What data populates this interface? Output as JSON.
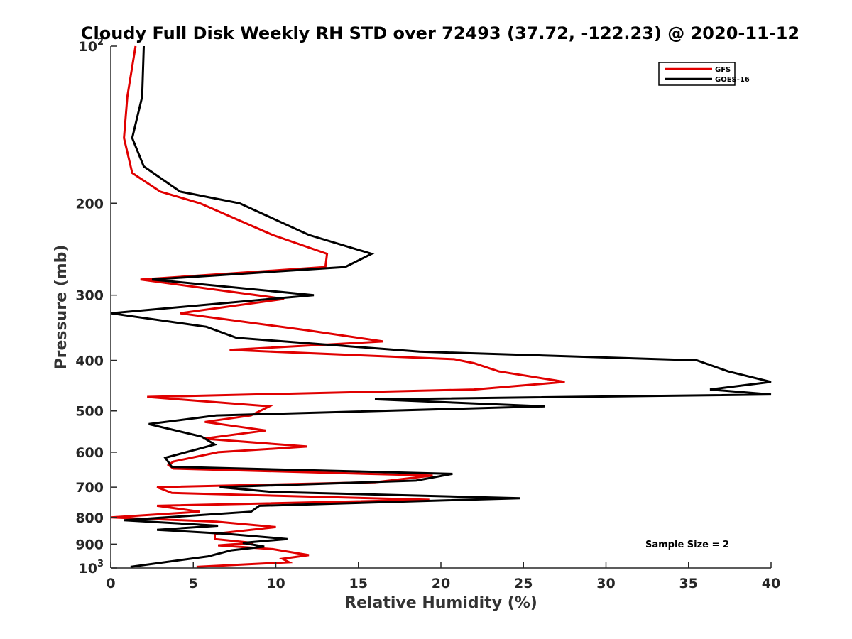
{
  "chart_data": {
    "type": "line",
    "title": "Cloudy Full Disk Weekly RH STD over 72493 (37.72, -122.23) @ 2020-11-12",
    "xlabel": "Relative Humidity (%)",
    "ylabel": "Pressure (mb)",
    "xlim": [
      0,
      40
    ],
    "ylim": [
      100,
      1000
    ],
    "yscale": "log",
    "y_reversed": true,
    "grid": false,
    "legend_position": "top-right",
    "x_ticks": [
      "0",
      "5",
      "10",
      "15",
      "20",
      "25",
      "30",
      "35",
      "40"
    ],
    "y_ticks": [
      {
        "value": 100,
        "base": "10",
        "exp": "2"
      },
      {
        "value": 200,
        "label": "200"
      },
      {
        "value": 300,
        "label": "300"
      },
      {
        "value": 400,
        "label": "400"
      },
      {
        "value": 500,
        "label": "500"
      },
      {
        "value": 600,
        "label": "600"
      },
      {
        "value": 700,
        "label": "700"
      },
      {
        "value": 800,
        "label": "800"
      },
      {
        "value": 900,
        "label": "900"
      },
      {
        "value": 1000,
        "base": "10",
        "exp": "3"
      }
    ],
    "series": [
      {
        "name": "GFS",
        "color": "#e00000",
        "points": [
          [
            1.5,
            100
          ],
          [
            1.0,
            125
          ],
          [
            0.8,
            150
          ],
          [
            1.3,
            175
          ],
          [
            3.0,
            190
          ],
          [
            5.4,
            200
          ],
          [
            9.8,
            230
          ],
          [
            13.1,
            250
          ],
          [
            13.0,
            265
          ],
          [
            1.8,
            280
          ],
          [
            10.5,
            305
          ],
          [
            4.2,
            325
          ],
          [
            11.8,
            350
          ],
          [
            16.5,
            368
          ],
          [
            7.2,
            382
          ],
          [
            20.8,
            398
          ],
          [
            22.0,
            405
          ],
          [
            23.5,
            420
          ],
          [
            27.5,
            440
          ],
          [
            22.0,
            455
          ],
          [
            2.2,
            470
          ],
          [
            9.6,
            490
          ],
          [
            8.5,
            510
          ],
          [
            5.7,
            525
          ],
          [
            9.4,
            545
          ],
          [
            5.6,
            565
          ],
          [
            11.9,
            585
          ],
          [
            6.5,
            600
          ],
          [
            3.8,
            625
          ],
          [
            3.5,
            635
          ],
          [
            3.8,
            645
          ],
          [
            19.5,
            665
          ],
          [
            16.0,
            685
          ],
          [
            2.8,
            700
          ],
          [
            3.7,
            718
          ],
          [
            19.3,
            740
          ],
          [
            2.8,
            760
          ],
          [
            5.4,
            780
          ],
          [
            0.0,
            800
          ],
          [
            6.4,
            815
          ],
          [
            10.0,
            835
          ],
          [
            6.3,
            860
          ],
          [
            6.3,
            880
          ],
          [
            8.6,
            895
          ],
          [
            6.5,
            905
          ],
          [
            9.8,
            920
          ],
          [
            12.0,
            945
          ],
          [
            10.4,
            960
          ],
          [
            10.8,
            975
          ],
          [
            5.2,
            995
          ]
        ]
      },
      {
        "name": "GOES-16",
        "color": "#000000",
        "points": [
          [
            2.0,
            100
          ],
          [
            1.9,
            125
          ],
          [
            1.3,
            150
          ],
          [
            2.0,
            170
          ],
          [
            4.2,
            190
          ],
          [
            7.8,
            200
          ],
          [
            12.0,
            230
          ],
          [
            15.8,
            250
          ],
          [
            14.2,
            265
          ],
          [
            2.5,
            280
          ],
          [
            12.3,
            300
          ],
          [
            0.0,
            325
          ],
          [
            5.8,
            345
          ],
          [
            7.6,
            362
          ],
          [
            18.7,
            385
          ],
          [
            35.5,
            400
          ],
          [
            37.4,
            420
          ],
          [
            40.0,
            440
          ],
          [
            36.3,
            455
          ],
          [
            40.0,
            465
          ],
          [
            16.0,
            475
          ],
          [
            26.3,
            490
          ],
          [
            6.4,
            510
          ],
          [
            2.3,
            530
          ],
          [
            5.5,
            560
          ],
          [
            6.3,
            580
          ],
          [
            3.3,
            615
          ],
          [
            3.7,
            640
          ],
          [
            20.7,
            660
          ],
          [
            18.5,
            680
          ],
          [
            6.6,
            700
          ],
          [
            9.8,
            715
          ],
          [
            24.8,
            735
          ],
          [
            9.0,
            760
          ],
          [
            8.5,
            780
          ],
          [
            0.8,
            810
          ],
          [
            6.5,
            830
          ],
          [
            2.8,
            845
          ],
          [
            7.0,
            860
          ],
          [
            10.7,
            880
          ],
          [
            8.0,
            895
          ],
          [
            9.3,
            910
          ],
          [
            7.3,
            925
          ],
          [
            5.9,
            950
          ],
          [
            1.2,
            995
          ]
        ]
      }
    ],
    "annotations": [
      "Sample Size = 2"
    ]
  }
}
